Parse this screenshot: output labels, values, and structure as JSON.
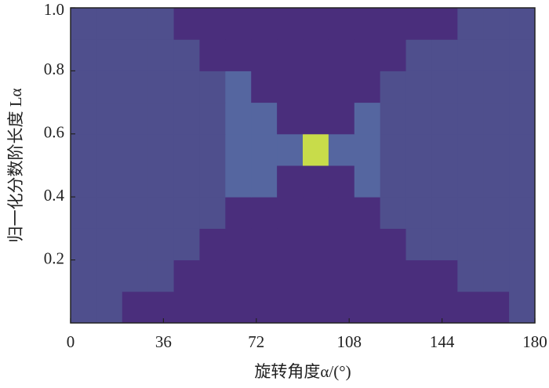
{
  "chart_data": {
    "type": "heatmap",
    "xlabel": "旋转角度α/(°)",
    "ylabel": "归一化分数阶长度 Lα",
    "xlim": [
      0,
      180
    ],
    "xticks": [
      0,
      36,
      72,
      108,
      144,
      180
    ],
    "ylim": [
      0,
      1
    ],
    "yticks": [
      0.2,
      0.4,
      0.6,
      0.8,
      {
        "value": 1,
        "label": "1.0"
      }
    ],
    "xbins": [
      0,
      10,
      20,
      30,
      40,
      50,
      60,
      70,
      80,
      90,
      100,
      110,
      120,
      130,
      140,
      150,
      160,
      170,
      180
    ],
    "ybins": [
      0,
      0.1,
      0.2,
      0.3,
      0.4,
      0.5,
      0.6,
      0.7,
      0.8,
      0.9,
      1
    ],
    "z": [
      [
        2,
        2,
        1,
        1,
        1,
        1,
        1,
        1,
        1,
        1,
        1,
        1,
        1,
        1,
        1,
        1,
        1,
        2
      ],
      [
        2,
        2,
        2,
        2,
        1,
        1,
        1,
        1,
        1,
        1,
        1,
        1,
        1,
        1,
        1,
        2,
        2,
        2
      ],
      [
        2,
        2,
        2,
        2,
        2,
        1,
        1,
        1,
        1,
        1,
        1,
        1,
        1,
        2,
        2,
        2,
        2,
        2
      ],
      [
        2,
        2,
        2,
        2,
        2,
        2,
        1,
        1,
        1,
        1,
        1,
        1,
        2,
        2,
        2,
        2,
        2,
        2
      ],
      [
        2,
        2,
        2,
        2,
        2,
        2,
        2.5,
        2.5,
        1,
        1,
        1,
        2.5,
        2,
        2,
        2,
        2,
        2,
        2
      ],
      [
        2,
        2,
        2,
        2,
        2,
        2,
        2.5,
        2.5,
        2.5,
        3,
        2.5,
        2.5,
        2,
        2,
        2,
        2,
        2,
        2
      ],
      [
        2,
        2,
        2,
        2,
        2,
        2,
        2.5,
        2.5,
        1,
        1,
        1,
        2.5,
        2,
        2,
        2,
        2,
        2,
        2
      ],
      [
        2,
        2,
        2,
        2,
        2,
        2,
        2.5,
        1,
        1,
        1,
        1,
        1,
        2,
        2,
        2,
        2,
        2,
        2
      ],
      [
        2,
        2,
        2,
        2,
        2,
        1,
        1,
        1,
        1,
        1,
        1,
        1,
        1,
        2,
        2,
        2,
        2,
        2
      ],
      [
        2,
        2,
        2,
        2,
        1,
        1,
        1,
        1,
        1,
        1,
        1,
        1,
        1,
        1,
        1,
        2,
        2,
        2
      ]
    ],
    "colorscale": [
      {
        "value": 1,
        "color": "#4a2e7c"
      },
      {
        "value": 2,
        "color": "#4f4f8d"
      },
      {
        "value": 2.5,
        "color": "#5566a0"
      },
      {
        "value": 3,
        "color": "#c8dc4a"
      }
    ]
  }
}
